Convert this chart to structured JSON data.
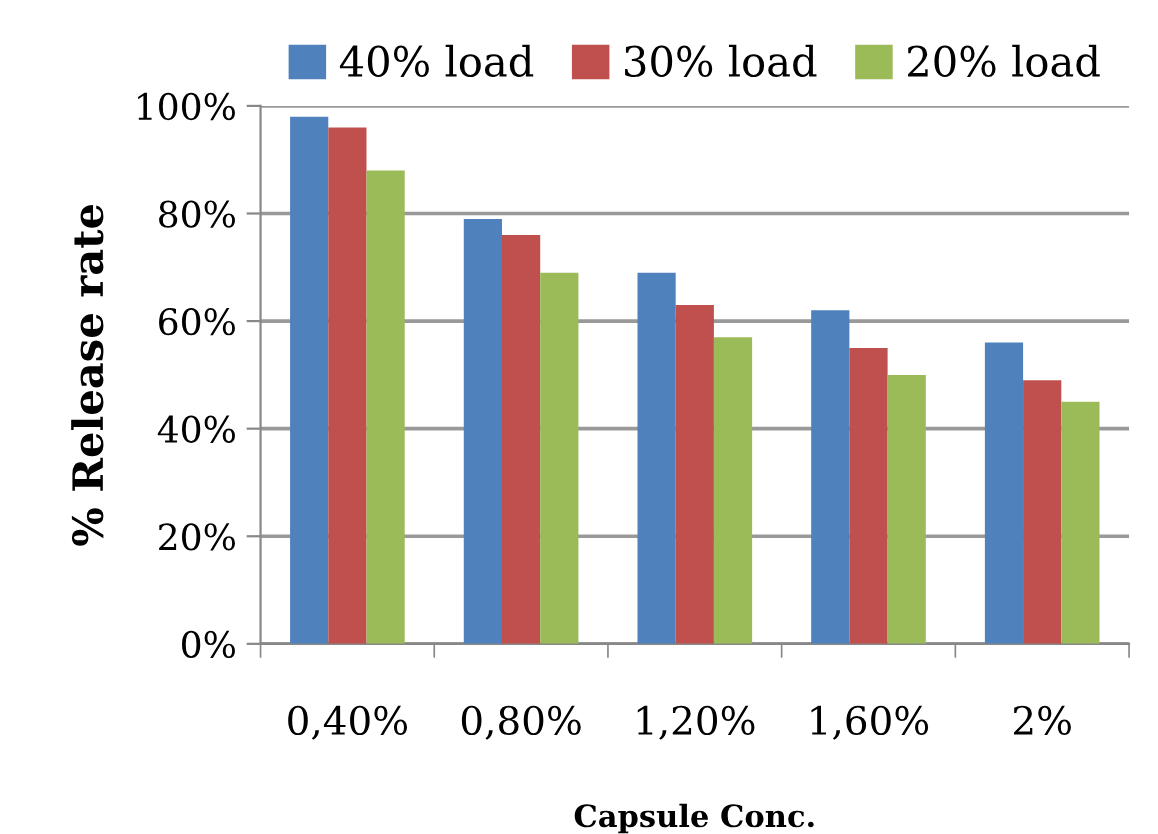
{
  "chart_data": {
    "type": "bar",
    "xlabel": "Capsule Conc.",
    "ylabel": "% Release rate",
    "categories": [
      "0,40%",
      "0,80%",
      "1,20%",
      "1,60%",
      "2%"
    ],
    "series": [
      {
        "name": "40% load",
        "color": "#4f81bd",
        "values": [
          98,
          79,
          69,
          62,
          56
        ]
      },
      {
        "name": "30% load",
        "color": "#c0504d",
        "values": [
          96,
          76,
          63,
          55,
          49
        ]
      },
      {
        "name": "20% load",
        "color": "#9bbb59",
        "values": [
          88,
          69,
          57,
          50,
          45
        ]
      }
    ],
    "ylim": [
      0,
      100
    ],
    "yticks": [
      {
        "value": 0,
        "label": "0%"
      },
      {
        "value": 20,
        "label": "20%"
      },
      {
        "value": 40,
        "label": "40%"
      },
      {
        "value": 60,
        "label": "60%"
      },
      {
        "value": 80,
        "label": "80%"
      },
      {
        "value": 100,
        "label": "100%"
      }
    ],
    "grid": "y",
    "legend": "top"
  }
}
